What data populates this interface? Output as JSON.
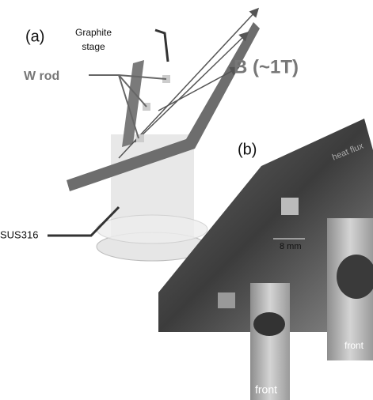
{
  "panel_a": {
    "label": "(a)",
    "graphite_stage": [
      "Graphite",
      "stage"
    ],
    "w_rod": "W rod",
    "field": "B (~1T)",
    "base": "SUS316"
  },
  "panel_b": {
    "label": "(b)",
    "flux": "heat flux",
    "scale": "8 mm",
    "insets": [
      "front",
      "front"
    ]
  }
}
